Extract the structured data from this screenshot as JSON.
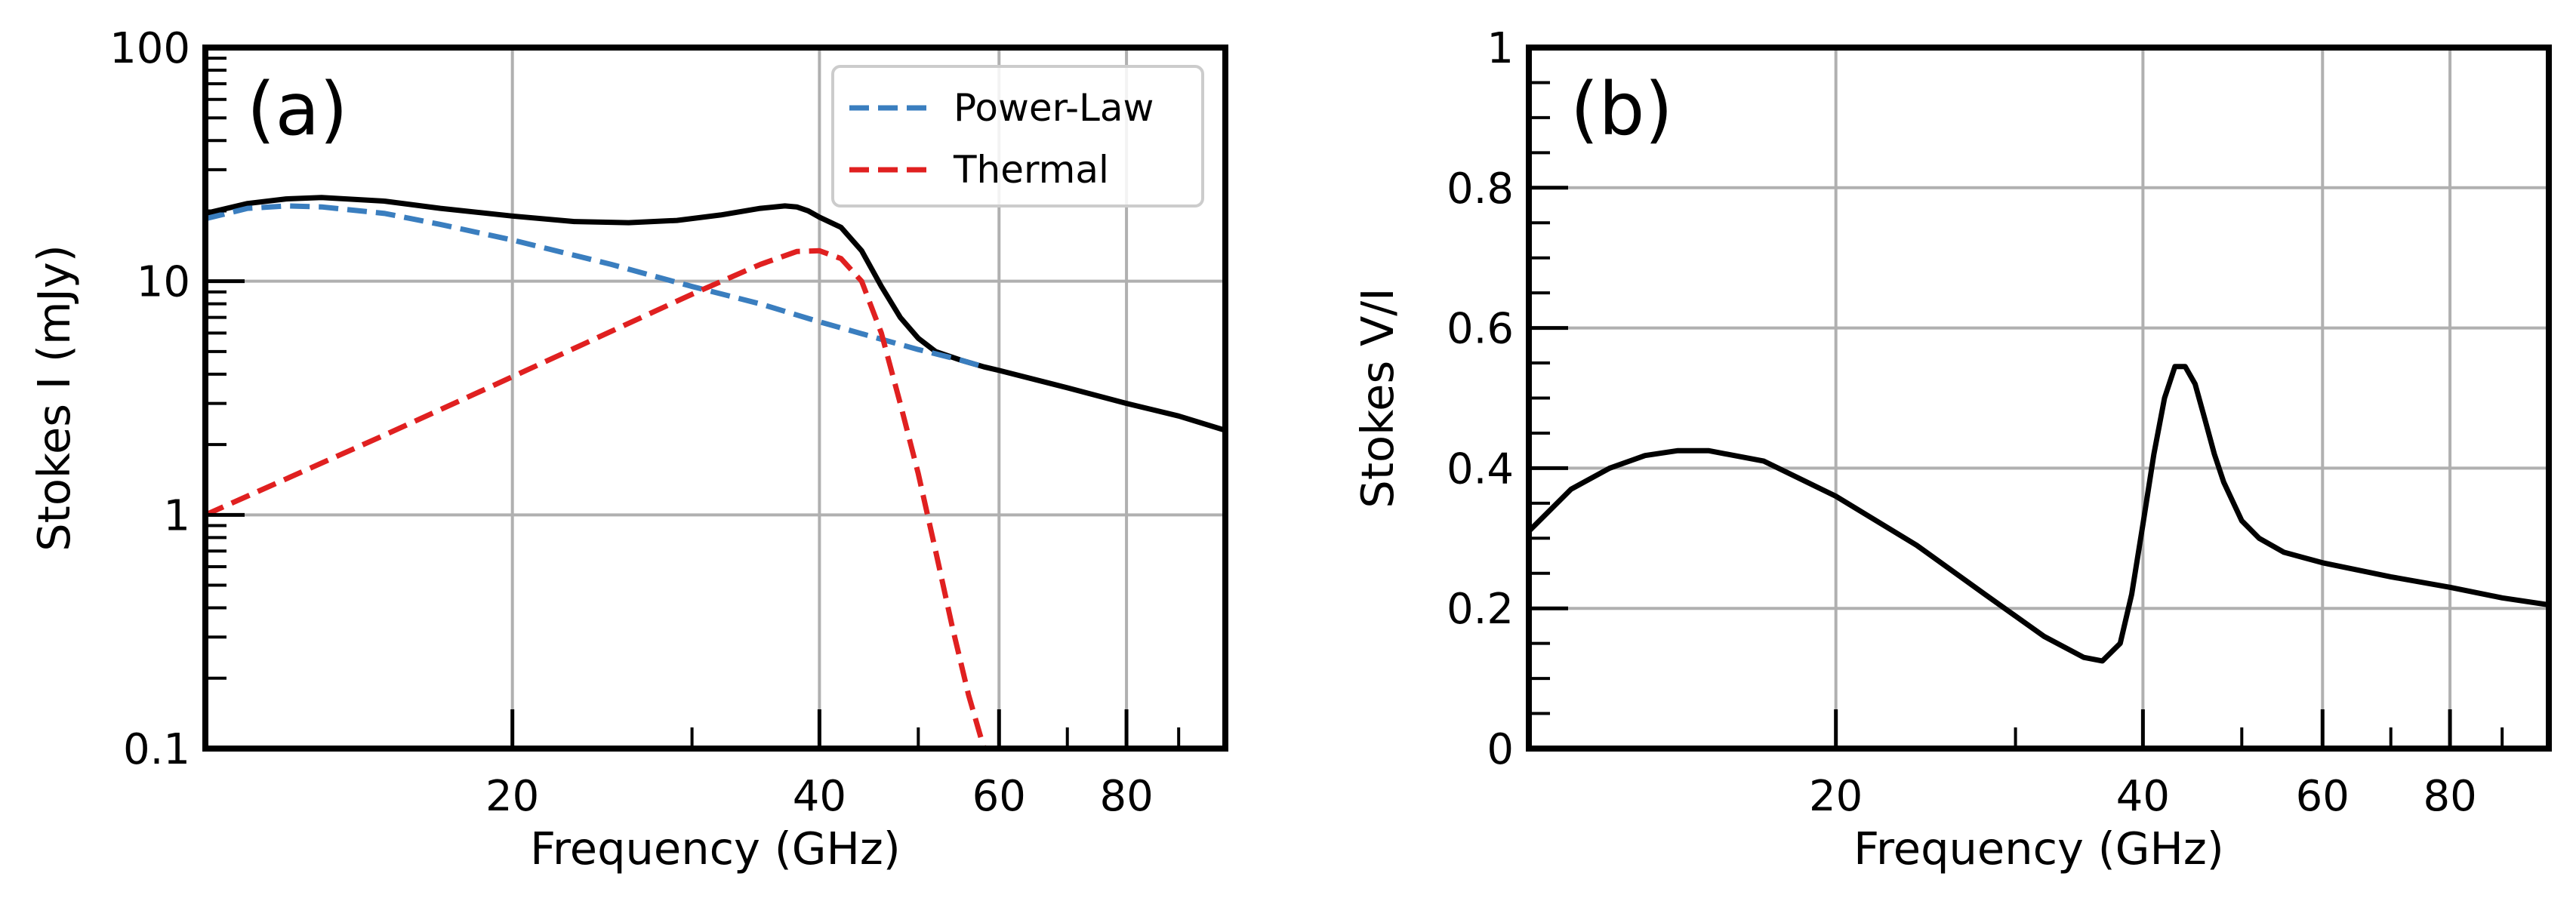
{
  "chart_data": [
    {
      "type": "line",
      "panel_label": "(a)",
      "xlabel": "Frequency (GHz)",
      "ylabel": "Stokes I (mJy)",
      "xscale": "log",
      "yscale": "log",
      "xlim": [
        10,
        100
      ],
      "ylim": [
        0.1,
        100
      ],
      "grid": true,
      "legend": "top-right",
      "xticks": [
        {
          "value": 20,
          "label": "20"
        },
        {
          "value": 40,
          "label": "40"
        },
        {
          "value": 60,
          "label": "60"
        },
        {
          "value": 80,
          "label": "80"
        }
      ],
      "yticks": [
        {
          "value": 0.1,
          "label": "0.1"
        },
        {
          "value": 1,
          "label": "1"
        },
        {
          "value": 10,
          "label": "10"
        },
        {
          "value": 100,
          "label": "100"
        }
      ],
      "series": [
        {
          "name": "",
          "color": "#000000",
          "style": "solid",
          "in_legend": false,
          "x": [
            10,
            11,
            12,
            13,
            15,
            17,
            20,
            23,
            26,
            29,
            32,
            35,
            37,
            38,
            39,
            40,
            42,
            44,
            46,
            48,
            50,
            52,
            55,
            58,
            60,
            70,
            80,
            90,
            100
          ],
          "y": [
            19.5,
            21.5,
            22.5,
            22.8,
            22.0,
            20.5,
            19.0,
            18.0,
            17.8,
            18.2,
            19.2,
            20.5,
            21.0,
            20.8,
            20.0,
            18.8,
            17.0,
            13.5,
            9.5,
            7.0,
            5.7,
            5.0,
            4.6,
            4.3,
            4.15,
            3.5,
            3.0,
            2.65,
            2.3
          ]
        },
        {
          "name": "Power-Law",
          "color": "#3a7ebf",
          "style": "dashed",
          "in_legend": true,
          "x": [
            10,
            11,
            12,
            13,
            15,
            17,
            20,
            25,
            30,
            35,
            40,
            45,
            50,
            55,
            58
          ],
          "y": [
            18.5,
            20.5,
            21.0,
            20.8,
            19.5,
            17.5,
            15.0,
            11.8,
            9.5,
            8.0,
            6.7,
            5.8,
            5.1,
            4.6,
            4.3
          ]
        },
        {
          "name": "Thermal",
          "color": "#e02020",
          "style": "dashed",
          "in_legend": true,
          "x": [
            10,
            15,
            20,
            25,
            30,
            35,
            38,
            40,
            42,
            44,
            46,
            48,
            50,
            52,
            54,
            56,
            58
          ],
          "y": [
            1.0,
            2.2,
            3.9,
            6.1,
            8.8,
            11.8,
            13.4,
            13.5,
            12.5,
            10.0,
            6.0,
            3.0,
            1.5,
            0.7,
            0.33,
            0.17,
            0.1
          ]
        }
      ]
    },
    {
      "type": "line",
      "panel_label": "(b)",
      "xlabel": "Frequency (GHz)",
      "ylabel": "Stokes V/I",
      "xscale": "log",
      "yscale": "linear",
      "xlim": [
        10,
        100
      ],
      "ylim": [
        0,
        1
      ],
      "grid": true,
      "xticks": [
        {
          "value": 20,
          "label": "20"
        },
        {
          "value": 40,
          "label": "40"
        },
        {
          "value": 60,
          "label": "60"
        },
        {
          "value": 80,
          "label": "80"
        }
      ],
      "yticks": [
        {
          "value": 0,
          "label": "0"
        },
        {
          "value": 0.2,
          "label": "0.2"
        },
        {
          "value": 0.4,
          "label": "0.4"
        },
        {
          "value": 0.6,
          "label": "0.6"
        },
        {
          "value": 0.8,
          "label": "0.8"
        },
        {
          "value": 1,
          "label": "1"
        }
      ],
      "series": [
        {
          "name": "",
          "color": "#000000",
          "style": "solid",
          "in_legend": false,
          "x": [
            10,
            11,
            12,
            13,
            14,
            15,
            17,
            20,
            24,
            28,
            32,
            35,
            36.5,
            38,
            39,
            40,
            41,
            42,
            43,
            44,
            45,
            46,
            47,
            48,
            50,
            52,
            55,
            60,
            70,
            80,
            90,
            100
          ],
          "y": [
            0.31,
            0.37,
            0.4,
            0.418,
            0.425,
            0.425,
            0.41,
            0.36,
            0.29,
            0.22,
            0.16,
            0.13,
            0.125,
            0.15,
            0.22,
            0.32,
            0.42,
            0.5,
            0.545,
            0.545,
            0.52,
            0.47,
            0.42,
            0.38,
            0.325,
            0.3,
            0.28,
            0.265,
            0.245,
            0.23,
            0.215,
            0.205
          ]
        }
      ]
    }
  ]
}
